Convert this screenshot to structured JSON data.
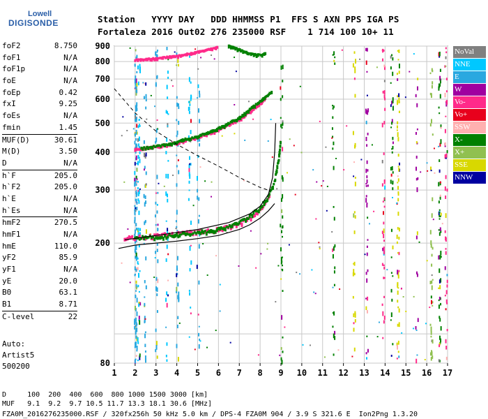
{
  "logo": {
    "line1": "Lowell",
    "line2": "DIGISONDE"
  },
  "header": {
    "row1": "Station   YYYY DAY   DDD HHMMSS P1  FFS S AXN PPS IGA PS",
    "row2": "Fortaleza 2016 Out02 276 235000 RSF    1 714 100 10+ 11"
  },
  "params": [
    {
      "label": "foF2",
      "value": "8.750"
    },
    {
      "label": "foF1",
      "value": "N/A"
    },
    {
      "label": "foF1p",
      "value": "N/A"
    },
    {
      "label": "foE",
      "value": "N/A"
    },
    {
      "label": "foEp",
      "value": "0.42"
    },
    {
      "label": "fxI",
      "value": "9.25"
    },
    {
      "label": "foEs",
      "value": "N/A"
    },
    {
      "label": "fmin",
      "value": "1.45"
    },
    {
      "label": "MUF(D)",
      "value": "30.61"
    },
    {
      "label": "M(D)",
      "value": "3.50"
    },
    {
      "label": "D",
      "value": "N/A"
    },
    {
      "label": "h`F",
      "value": "205.0"
    },
    {
      "label": "h`F2",
      "value": "205.0"
    },
    {
      "label": "h`E",
      "value": "N/A"
    },
    {
      "label": "h`Es",
      "value": "N/A"
    },
    {
      "label": "hmF2",
      "value": "270.5"
    },
    {
      "label": "hmF1",
      "value": "N/A"
    },
    {
      "label": "hmE",
      "value": "110.0"
    },
    {
      "label": "yF2",
      "value": "85.9"
    },
    {
      "label": "yF1",
      "value": "N/A"
    },
    {
      "label": "yE",
      "value": "20.0"
    },
    {
      "label": "B0",
      "value": "63.1"
    },
    {
      "label": "B1",
      "value": "8.71"
    },
    {
      "label": "C-level",
      "value": "22"
    }
  ],
  "auto": {
    "line1": "Auto:",
    "line2": "Artist5",
    "line3": "500200"
  },
  "legend": [
    {
      "label": "NoVal",
      "color": "#808080"
    },
    {
      "label": "NNE",
      "color": "#00c8ff"
    },
    {
      "label": "E",
      "color": "#2aa8e0"
    },
    {
      "label": "W",
      "color": "#a000a0"
    },
    {
      "label": "Vo-",
      "color": "#ff2a8a"
    },
    {
      "label": "Vo+",
      "color": "#e8001c"
    },
    {
      "label": "SSW",
      "color": "#ffb0b0"
    },
    {
      "label": "X-",
      "color": "#008000"
    },
    {
      "label": "X+",
      "color": "#90c050"
    },
    {
      "label": "SSE",
      "color": "#d8d800"
    },
    {
      "label": "NNW",
      "color": "#0000a0"
    }
  ],
  "footer": {
    "row1": "D     100  200  400  600  800 1000 1500 3000 [km]",
    "row2": "MUF   9.1  9.2  9.7 10.5 11.7 13.3 18.1 30.6 [MHz]",
    "row3": "FZA0M_2016276235000.RSF / 320fx256h 50 kHz 5.0 km / DPS-4 FZA0M 904 / 3.9 S 321.6 E  Ion2Png 1.3.20"
  },
  "chart_data": {
    "type": "scatter",
    "title": "",
    "xlabel": "",
    "ylabel": "",
    "xlim": [
      1,
      17
    ],
    "ylim": [
      80,
      900
    ],
    "x_ticks": [
      1,
      2,
      3,
      4,
      5,
      6,
      7,
      8,
      9,
      10,
      11,
      12,
      13,
      14,
      15,
      16,
      17
    ],
    "y_ticks": [
      80,
      100,
      200,
      300,
      400,
      500,
      600,
      700,
      800,
      900
    ],
    "y_tick_labels": [
      80,
      200,
      300,
      400,
      500,
      600,
      700,
      800,
      900
    ],
    "y_scale": "log",
    "grid": true,
    "series": [
      {
        "role": "o-trace F2 (Vo-)",
        "color": "#ff2a8a",
        "points": [
          [
            1.5,
            208
          ],
          [
            2,
            209
          ],
          [
            3,
            212
          ],
          [
            4,
            215
          ],
          [
            5,
            218
          ],
          [
            6,
            222
          ],
          [
            7,
            232
          ],
          [
            7.5,
            242
          ],
          [
            8,
            258
          ],
          [
            8.3,
            275
          ],
          [
            8.5,
            290
          ]
        ]
      },
      {
        "role": "x-trace F2 (X-)",
        "color": "#008000",
        "points": [
          [
            2,
            207
          ],
          [
            3,
            210
          ],
          [
            4,
            213
          ],
          [
            5,
            217
          ],
          [
            6,
            222
          ],
          [
            7,
            234
          ],
          [
            7.5,
            245
          ],
          [
            8,
            262
          ],
          [
            8.4,
            285
          ],
          [
            8.7,
            320
          ],
          [
            8.9,
            380
          ],
          [
            9,
            440
          ]
        ]
      },
      {
        "role": "2nd hop o-trace (Vo-)",
        "color": "#ff2a8a",
        "points": [
          [
            2,
            410
          ],
          [
            3,
            418
          ],
          [
            4,
            430
          ],
          [
            5,
            448
          ],
          [
            6,
            475
          ],
          [
            7,
            515
          ],
          [
            7.5,
            545
          ],
          [
            8,
            580
          ],
          [
            8.3,
            610
          ]
        ]
      },
      {
        "role": "2nd hop x-trace (X-)",
        "color": "#008000",
        "points": [
          [
            2.3,
            412
          ],
          [
            3.5,
            425
          ],
          [
            5,
            452
          ],
          [
            6,
            480
          ],
          [
            7,
            520
          ],
          [
            8,
            590
          ],
          [
            8.6,
            640
          ]
        ]
      },
      {
        "role": "3rd hop o-trace (Vo-)",
        "color": "#ff2a8a",
        "points": [
          [
            2,
            810
          ],
          [
            3,
            820
          ],
          [
            4,
            835
          ],
          [
            5,
            860
          ],
          [
            6,
            895
          ]
        ]
      },
      {
        "role": "3rd hop x-trace (X-)",
        "color": "#008000",
        "points": [
          [
            6.5,
            905
          ],
          [
            7.5,
            850
          ],
          [
            8.1,
            840
          ],
          [
            8.3,
            860
          ]
        ]
      }
    ],
    "profile": {
      "role": "electron density profile",
      "color": "#000000",
      "points": [
        [
          1.2,
          192
        ],
        [
          2,
          197
        ],
        [
          3,
          200
        ],
        [
          4,
          203
        ],
        [
          5,
          207
        ],
        [
          6,
          212
        ],
        [
          7,
          222
        ],
        [
          7.5,
          230
        ],
        [
          8,
          242
        ],
        [
          8.4,
          256
        ],
        [
          8.7,
          270.5
        ]
      ]
    },
    "profile2": {
      "role": "virtual height profile",
      "color": "#000000",
      "points": [
        [
          1.5,
          205
        ],
        [
          3,
          212
        ],
        [
          5,
          222
        ],
        [
          6.5,
          234
        ],
        [
          7.5,
          250
        ],
        [
          8,
          265
        ],
        [
          8.4,
          290
        ],
        [
          8.6,
          330
        ],
        [
          8.7,
          400
        ],
        [
          8.75,
          500
        ]
      ]
    },
    "muf_curve": {
      "role": "dashed MUF curve",
      "color": "#000000",
      "points": [
        [
          1,
          650
        ],
        [
          2,
          540
        ],
        [
          3,
          470
        ],
        [
          4,
          425
        ],
        [
          5,
          390
        ],
        [
          6,
          360
        ],
        [
          7,
          330
        ],
        [
          8,
          306
        ],
        [
          8.5,
          298
        ]
      ]
    }
  }
}
